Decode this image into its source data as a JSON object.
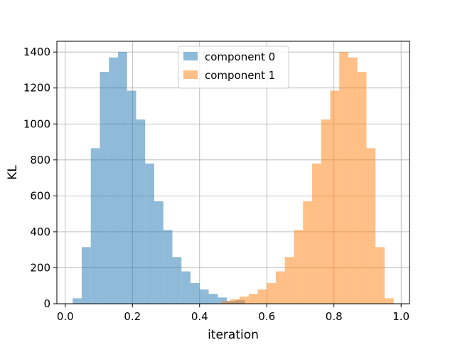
{
  "chart_data": {
    "type": "histogram",
    "xlabel": "iteration",
    "ylabel": "KL",
    "xlim": [
      -0.025,
      1.025
    ],
    "ylim": [
      0,
      1460
    ],
    "grid": true,
    "legend_placement": "top-center",
    "x_ticks": [
      0.0,
      0.2,
      0.4,
      0.6,
      0.8,
      1.0
    ],
    "x_tick_labels": [
      "0.0",
      "0.2",
      "0.4",
      "0.6",
      "0.8",
      "1.0"
    ],
    "y_ticks": [
      0,
      200,
      400,
      600,
      800,
      1000,
      1200,
      1400
    ],
    "y_tick_labels": [
      "0",
      "200",
      "400",
      "600",
      "800",
      "1000",
      "1200",
      "1400"
    ],
    "series": [
      {
        "name": "component 0",
        "color": "#1f77b4",
        "alpha": 0.5,
        "bin_edges": [
          0.022,
          0.049,
          0.076,
          0.103,
          0.13,
          0.157,
          0.184,
          0.211,
          0.238,
          0.265,
          0.292,
          0.319,
          0.346,
          0.373,
          0.4,
          0.427,
          0.454,
          0.481,
          0.508,
          0.535
        ],
        "counts": [
          30,
          315,
          865,
          1290,
          1370,
          1400,
          1185,
          1025,
          780,
          570,
          410,
          260,
          180,
          115,
          80,
          55,
          35,
          15,
          20
        ]
      },
      {
        "name": "component 1",
        "color": "#ff7f0e",
        "alpha": 0.5,
        "bin_edges": [
          0.465,
          0.492,
          0.519,
          0.546,
          0.573,
          0.6,
          0.627,
          0.654,
          0.681,
          0.708,
          0.735,
          0.762,
          0.789,
          0.816,
          0.843,
          0.87,
          0.897,
          0.924,
          0.951,
          0.978
        ],
        "counts": [
          15,
          25,
          40,
          55,
          80,
          115,
          180,
          260,
          410,
          570,
          780,
          1025,
          1185,
          1400,
          1370,
          1290,
          865,
          315,
          30
        ]
      }
    ]
  }
}
